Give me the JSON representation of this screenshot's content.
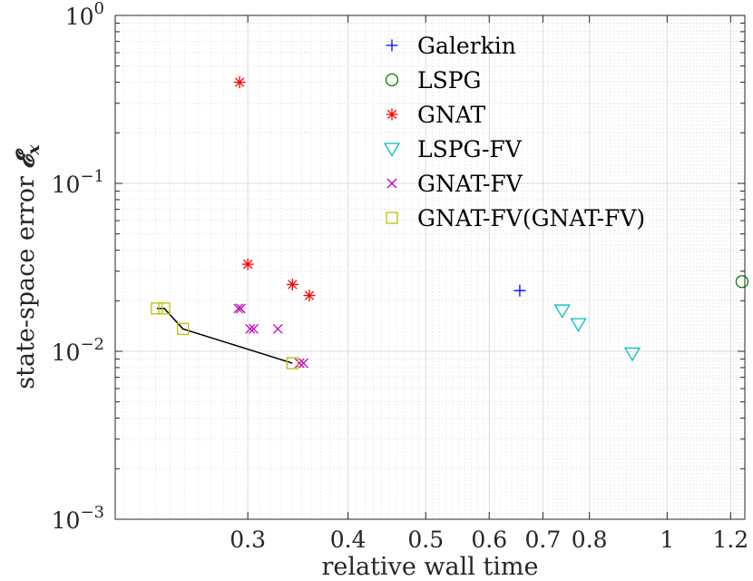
{
  "chart_data": {
    "type": "scatter",
    "xscale": "log",
    "yscale": "log",
    "xlabel": "relative wall time",
    "ylabel": "state-space error",
    "ylabel_symbol": "𝓔",
    "ylabel_subscript": "x",
    "xlim": [
      0.205,
      1.25
    ],
    "ylim": [
      0.001,
      1
    ],
    "xticks": [
      {
        "value": 0.3,
        "label": "0.3"
      },
      {
        "value": 0.4,
        "label": "0.4"
      },
      {
        "value": 0.5,
        "label": "0.5"
      },
      {
        "value": 0.6,
        "label": "0.6"
      },
      {
        "value": 0.7,
        "label": "0.7"
      },
      {
        "value": 0.8,
        "label": "0.8"
      },
      {
        "value": 1.0,
        "label": "1"
      },
      {
        "value": 1.2,
        "label": "1.2"
      }
    ],
    "yticks": [
      {
        "value": 0.001,
        "base": "10",
        "exp": "−3"
      },
      {
        "value": 0.01,
        "base": "10",
        "exp": "−2"
      },
      {
        "value": 0.1,
        "base": "10",
        "exp": "−1"
      },
      {
        "value": 1,
        "base": "10",
        "exp": "0"
      }
    ],
    "grid": true,
    "legend_position": "top-right",
    "series": [
      {
        "name": "Galerkin",
        "marker": "plus",
        "color": "#0000ff",
        "points": [
          [
            0.655,
            0.023
          ]
        ]
      },
      {
        "name": "LSPG",
        "marker": "circle",
        "color": "#008000",
        "points": [
          [
            1.24,
            0.026
          ]
        ]
      },
      {
        "name": "GNAT",
        "marker": "star",
        "color": "#ff0000",
        "points": [
          [
            0.293,
            0.4
          ],
          [
            0.3,
            0.033
          ],
          [
            0.341,
            0.025
          ],
          [
            0.358,
            0.0215
          ]
        ]
      },
      {
        "name": "LSPG-FV",
        "marker": "triangle-down",
        "color": "#00bfbf",
        "points": [
          [
            0.74,
            0.0175
          ],
          [
            0.775,
            0.0145
          ],
          [
            0.905,
            0.0097
          ]
        ]
      },
      {
        "name": "GNAT-FV",
        "marker": "x",
        "color": "#bf00bf",
        "points": [
          [
            0.292,
            0.018
          ],
          [
            0.294,
            0.018
          ],
          [
            0.302,
            0.0136
          ],
          [
            0.305,
            0.0136
          ],
          [
            0.327,
            0.0136
          ],
          [
            0.348,
            0.0085
          ],
          [
            0.352,
            0.0085
          ]
        ]
      },
      {
        "name": "GNAT-FV(GNAT-FV)",
        "marker": "square",
        "color": "#bfbf00",
        "points": [
          [
            0.231,
            0.018
          ],
          [
            0.236,
            0.018
          ],
          [
            0.249,
            0.0136
          ],
          [
            0.341,
            0.0085
          ]
        ]
      }
    ],
    "pareto_front": {
      "color": "#000000",
      "points": [
        [
          0.231,
          0.018
        ],
        [
          0.236,
          0.018
        ],
        [
          0.249,
          0.0136
        ],
        [
          0.341,
          0.0085
        ]
      ]
    }
  }
}
